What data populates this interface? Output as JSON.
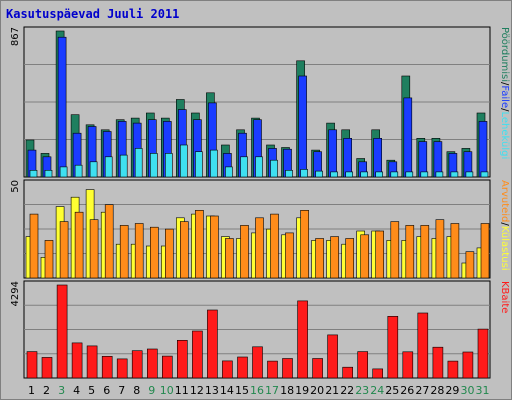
{
  "chart_data": {
    "type": "bar",
    "title": "Kasutuspäevad Juuli 2011",
    "categories": [
      "1",
      "2",
      "3",
      "4",
      "5",
      "6",
      "7",
      "8",
      "9",
      "10",
      "11",
      "12",
      "13",
      "14",
      "15",
      "16",
      "17",
      "18",
      "19",
      "20",
      "21",
      "22",
      "23",
      "24",
      "25",
      "26",
      "27",
      "28",
      "29",
      "30",
      "31"
    ],
    "weekend_days": [
      "3",
      "9",
      "10",
      "16",
      "17",
      "23",
      "24",
      "30",
      "31"
    ],
    "colors": {
      "Pöördumisi": "#1f7f5f",
      "Faile": "#1a3cff",
      "Lehekülgi": "#3fe0f0",
      "Külastusi": "#ffff33",
      "Arvuteid": "#ff8c1a",
      "KBaite": "#ff1a1a",
      "weekday_label": "#000000",
      "weekend_label": "#22884e",
      "title": "#0000cc",
      "panel_bg": "#c0c0c0"
    },
    "panels": [
      {
        "ymax_label": "867",
        "ylim": [
          0,
          867
        ],
        "legend": [
          "Pöördumisi",
          "/",
          "Faile",
          "/",
          "Lehekülgi"
        ],
        "legend_colors": [
          "#1f7f5f",
          "#000000",
          "#1a3cff",
          "#000000",
          "#3fe0f0"
        ],
        "series": [
          {
            "name": "Pöördumisi",
            "values": [
              220,
              140,
              867,
              370,
              310,
              280,
              340,
              350,
              380,
              350,
              460,
              380,
              500,
              190,
              280,
              350,
              190,
              175,
              690,
              160,
              320,
              280,
              110,
              280,
              100,
              600,
              230,
              230,
              150,
              170,
              380
            ]
          },
          {
            "name": "Faile",
            "values": [
              160,
              120,
              830,
              260,
              300,
              270,
              330,
              320,
              340,
              330,
              400,
              340,
              440,
              140,
              260,
              340,
              170,
              165,
              600,
              150,
              280,
              230,
              90,
              230,
              90,
              470,
              210,
              210,
              140,
              150,
              330
            ]
          },
          {
            "name": "Lehekülgi",
            "values": [
              40,
              40,
              60,
              70,
              90,
              120,
              130,
              170,
              140,
              140,
              190,
              150,
              160,
              60,
              120,
              120,
              100,
              40,
              45,
              35,
              30,
              30,
              30,
              30,
              30,
              30,
              30,
              30,
              30,
              30,
              30
            ]
          }
        ]
      },
      {
        "ymax_label": "50",
        "ylim": [
          0,
          50
        ],
        "legend": [
          "Arvuteid",
          "/",
          "Külastusi"
        ],
        "legend_colors": [
          "#ff8c1a",
          "#000000",
          "#ffff33"
        ],
        "series": [
          {
            "name": "Külastusi",
            "values": [
              22,
              11,
              38,
              43,
              47,
              35,
              18,
              18,
              17,
              17,
              32,
              34,
              33,
              22,
              21,
              24,
              26,
              23,
              32,
              20,
              20,
              18,
              25,
              25,
              20,
              20,
              22,
              21,
              22,
              8,
              16
            ]
          },
          {
            "name": "Arvuteid",
            "values": [
              34,
              20,
              30,
              35,
              31,
              39,
              28,
              29,
              27,
              26,
              30,
              36,
              33,
              21,
              28,
              32,
              34,
              24,
              36,
              21,
              22,
              21,
              23,
              25,
              30,
              28,
              28,
              31,
              29,
              14,
              29
            ]
          }
        ]
      },
      {
        "ymax_label": "4294",
        "ylim": [
          0,
          4294
        ],
        "legend": [
          "KBaite"
        ],
        "legend_colors": [
          "#ff1a1a"
        ],
        "series": [
          {
            "name": "KBaite",
            "values": [
              1220,
              950,
              4294,
              1620,
              1480,
              1000,
              880,
              1260,
              1340,
              1010,
              1740,
              2170,
              3140,
              790,
              970,
              1440,
              780,
              900,
              3560,
              900,
              1990,
              500,
              1220,
              420,
              2850,
              1210,
              3000,
              1420,
              780,
              1200,
              2260
            ]
          }
        ]
      }
    ]
  }
}
